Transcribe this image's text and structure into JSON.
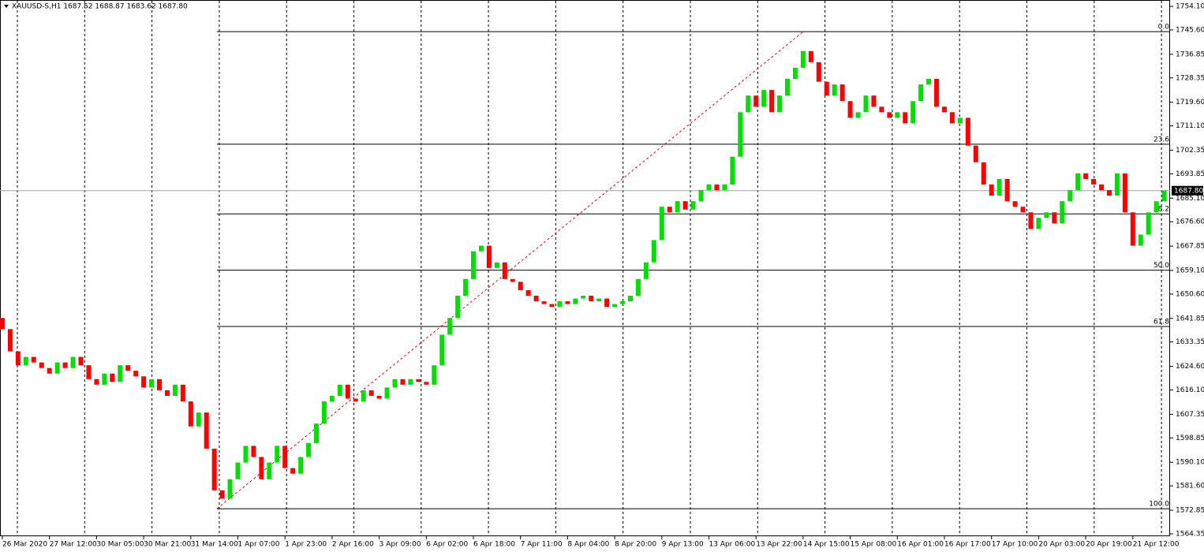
{
  "chart_data": {
    "type": "candlestick",
    "title": "XAUUSD-S,H1  1687.52 1688.87 1683.62 1687.80",
    "open": 1642,
    "close": [
      1638,
      1630,
      1625,
      1628,
      1626,
      1624,
      1622,
      1626,
      1624,
      1628,
      1625,
      1620,
      1618,
      1622,
      1619,
      1625,
      1623,
      1621,
      1617,
      1620,
      1616,
      1614,
      1618,
      1612,
      1603,
      1608,
      1595,
      1580,
      1577,
      1584,
      1590,
      1596,
      1592,
      1584,
      1590,
      1596,
      1588,
      1586,
      1592,
      1597,
      1604,
      1612,
      1614,
      1618,
      1613,
      1612,
      1616,
      1614,
      1613,
      1617,
      1620,
      1618,
      1620,
      1619,
      1618,
      1625,
      1636,
      1642,
      1650,
      1656,
      1666,
      1668,
      1660,
      1662,
      1656,
      1655,
      1652,
      1650,
      1648,
      1647,
      1646,
      1648,
      1647,
      1649,
      1650,
      1648,
      1649,
      1646,
      1647,
      1648,
      1650,
      1656,
      1662,
      1670,
      1682,
      1680,
      1684,
      1681,
      1684,
      1688,
      1690,
      1688,
      1690,
      1700,
      1716,
      1722,
      1718,
      1724,
      1716,
      1722,
      1728,
      1732,
      1738,
      1734,
      1727,
      1722,
      1726,
      1720,
      1714,
      1716,
      1722,
      1718,
      1716,
      1714,
      1716,
      1712,
      1720,
      1726,
      1728,
      1718,
      1716,
      1712,
      1714,
      1704,
      1698,
      1690,
      1686,
      1692,
      1684,
      1682,
      1680,
      1674,
      1678,
      1680,
      1676,
      1684,
      1688,
      1694,
      1692,
      1690,
      1688,
      1686,
      1694,
      1680,
      1668,
      1672,
      1680,
      1684,
      1687.8
    ],
    "up_color": "#00e000",
    "down_color": "#ff0000",
    "time_labels": [
      "26 Mar 2020",
      "27 Mar 12:00",
      "30 Mar 05:00",
      "30 Mar 21:00",
      "31 Mar 14:00",
      "1 Apr 07:00",
      "1 Apr 23:00",
      "2 Apr 16:00",
      "3 Apr 09:00",
      "6 Apr 02:00",
      "6 Apr 18:00",
      "7 Apr 11:00",
      "8 Apr 04:00",
      "8 Apr 20:00",
      "9 Apr 13:00",
      "13 Apr 06:00",
      "13 Apr 22:00",
      "14 Apr 15:00",
      "15 Apr 08:00",
      "16 Apr 01:00",
      "16 Apr 17:00",
      "17 Apr 10:00",
      "20 Apr 03:00",
      "20 Apr 19:00",
      "21 Apr 12:00"
    ],
    "ylim": [
      1564.35,
      1754.1
    ],
    "yticks": [
      {
        "value": 1754.1,
        "label": "1754.10"
      },
      {
        "value": 1745.6,
        "label": "1745.60"
      },
      {
        "value": 1736.85,
        "label": "1736.85"
      },
      {
        "value": 1728.35,
        "label": "1728.35"
      },
      {
        "value": 1719.6,
        "label": "1719.60"
      },
      {
        "value": 1711.1,
        "label": "1711.10"
      },
      {
        "value": 1702.35,
        "label": "1702.35"
      },
      {
        "value": 1693.85,
        "label": "1693.85"
      },
      {
        "value": 1685.1,
        "label": "1685.10"
      },
      {
        "value": 1676.6,
        "label": "1676.60"
      },
      {
        "value": 1667.85,
        "label": "1667.85"
      },
      {
        "value": 1659.1,
        "label": "1659.10"
      },
      {
        "value": 1650.6,
        "label": "1650.60"
      },
      {
        "value": 1641.85,
        "label": "1641.85"
      },
      {
        "value": 1633.35,
        "label": "1633.35"
      },
      {
        "value": 1624.6,
        "label": "1624.60"
      },
      {
        "value": 1616.1,
        "label": "1616.10"
      },
      {
        "value": 1607.35,
        "label": "1607.35"
      },
      {
        "value": 1598.85,
        "label": "1598.85"
      },
      {
        "value": 1590.1,
        "label": "1590.10"
      },
      {
        "value": 1581.6,
        "label": "1581.60"
      },
      {
        "value": 1572.85,
        "label": "1572.85"
      },
      {
        "value": 1564.35,
        "label": "1564.35"
      }
    ],
    "current_price": {
      "value": 1687.8,
      "label": "1687.80"
    },
    "fibonacci": {
      "high": 1745.0,
      "low": 1573.4,
      "color": "#000000",
      "trend_color": "#ff0000",
      "levels": [
        {
          "value": 0,
          "label": "0.0"
        },
        {
          "value": 23.6,
          "label": "23.6"
        },
        {
          "value": 38.2,
          "label": "38.2"
        },
        {
          "value": 50,
          "label": "50.0"
        },
        {
          "value": 61.8,
          "label": "61.8"
        },
        {
          "value": 100,
          "label": "100.0"
        }
      ]
    }
  }
}
